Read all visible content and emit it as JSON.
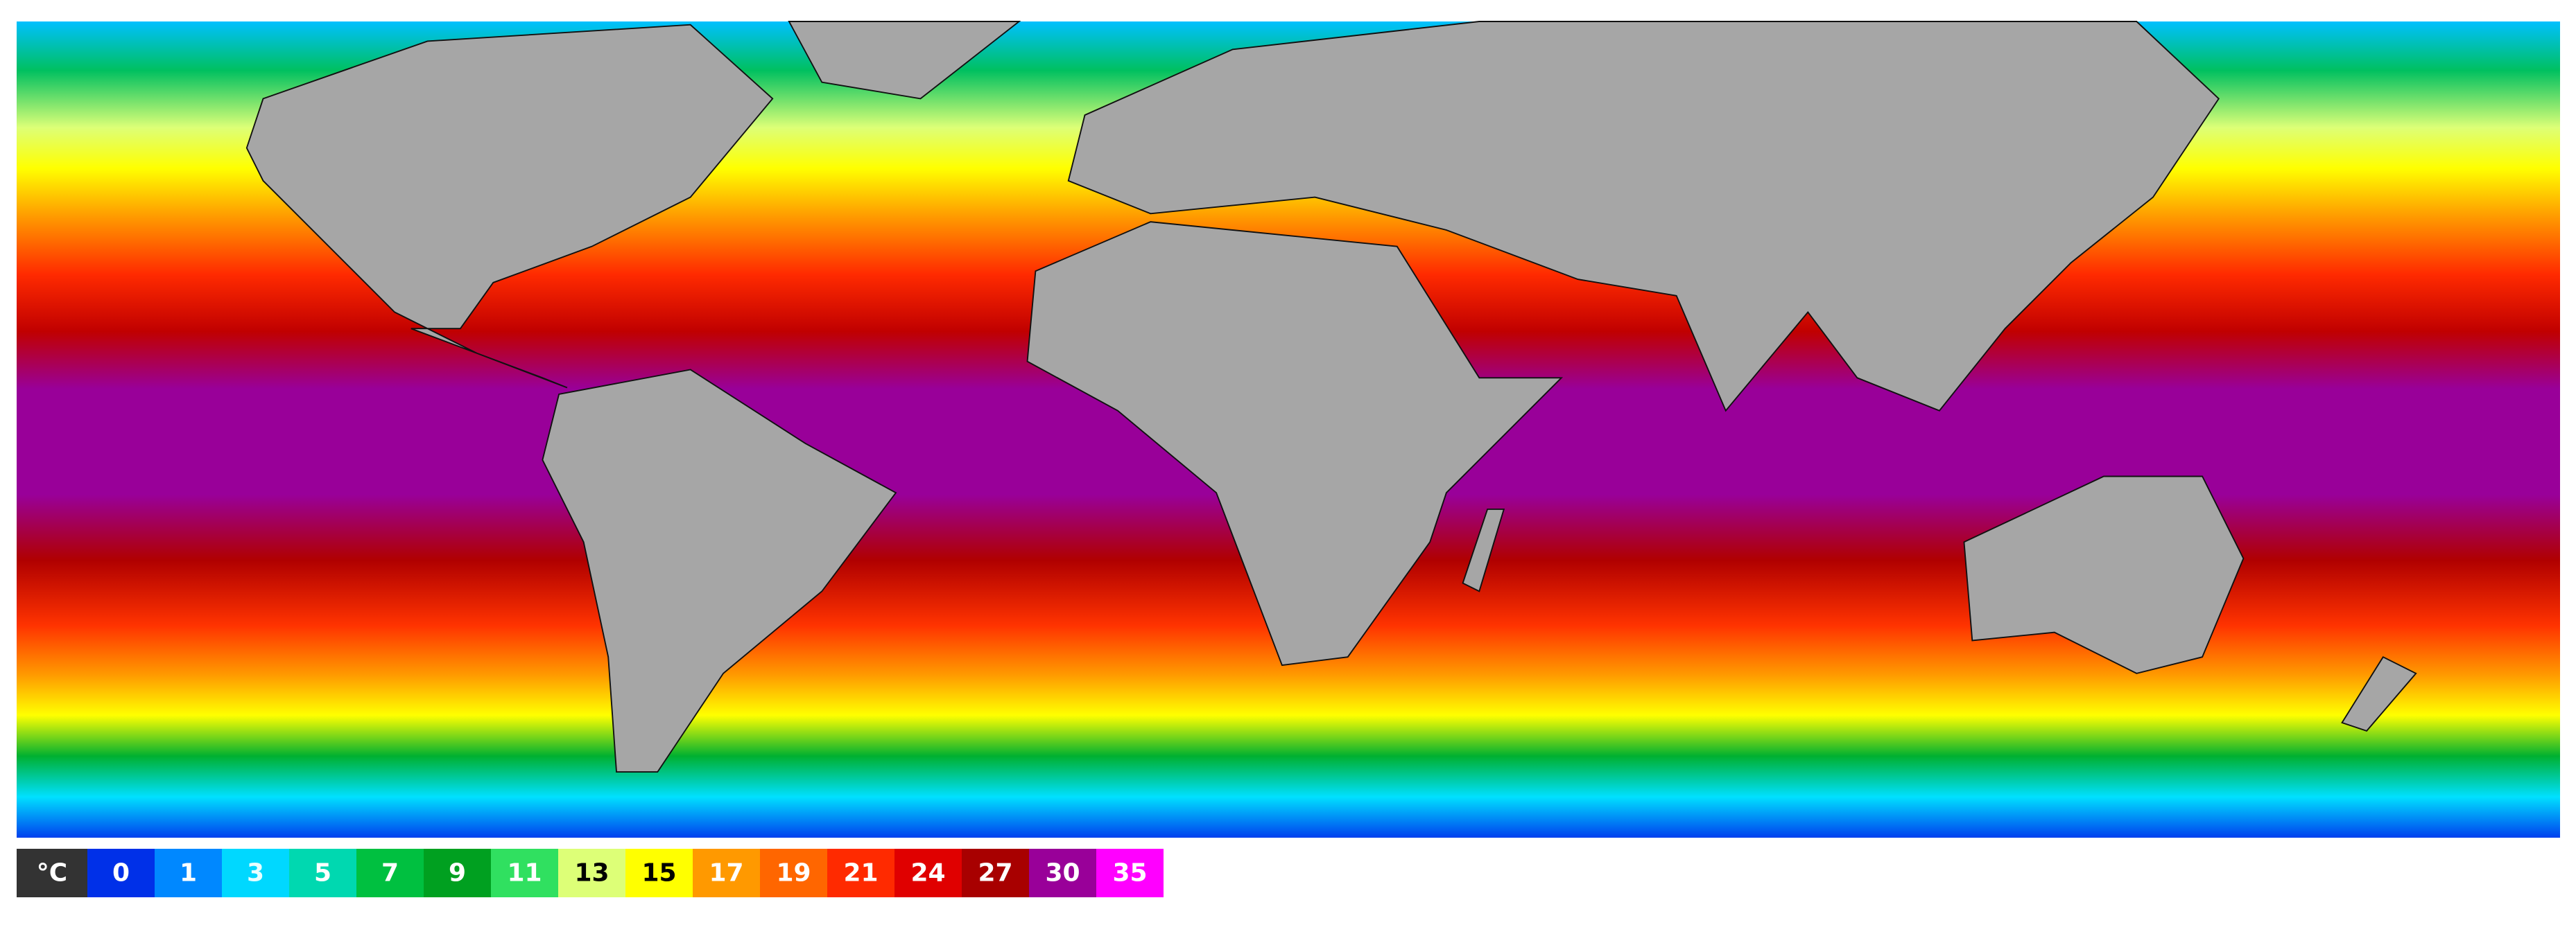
{
  "legend": {
    "unit": "°C",
    "unit_color": "#333333",
    "items": [
      {
        "label": "0",
        "color": "#0030e8",
        "text_color": "#ffffff"
      },
      {
        "label": "1",
        "color": "#0088ff",
        "text_color": "#ffffff"
      },
      {
        "label": "3",
        "color": "#00d8ff",
        "text_color": "#e8ffff"
      },
      {
        "label": "5",
        "color": "#00d8b0",
        "text_color": "#ffffff"
      },
      {
        "label": "7",
        "color": "#00c040",
        "text_color": "#ffffff"
      },
      {
        "label": "9",
        "color": "#00a020",
        "text_color": "#ffffff"
      },
      {
        "label": "11",
        "color": "#30e060",
        "text_color": "#ffffff"
      },
      {
        "label": "13",
        "color": "#ddff77",
        "text_color": "#000000"
      },
      {
        "label": "15",
        "color": "#ffff00",
        "text_color": "#000000"
      },
      {
        "label": "17",
        "color": "#ff9900",
        "text_color": "#ffffff"
      },
      {
        "label": "19",
        "color": "#ff6600",
        "text_color": "#ffffff"
      },
      {
        "label": "21",
        "color": "#ff2a00",
        "text_color": "#ffffff"
      },
      {
        "label": "24",
        "color": "#e00000",
        "text_color": "#ffffff"
      },
      {
        "label": "27",
        "color": "#a80000",
        "text_color": "#ffffff"
      },
      {
        "label": "30",
        "color": "#990099",
        "text_color": "#ffffff"
      },
      {
        "label": "35",
        "color": "#ff00ff",
        "text_color": "#ffffff"
      }
    ]
  }
}
